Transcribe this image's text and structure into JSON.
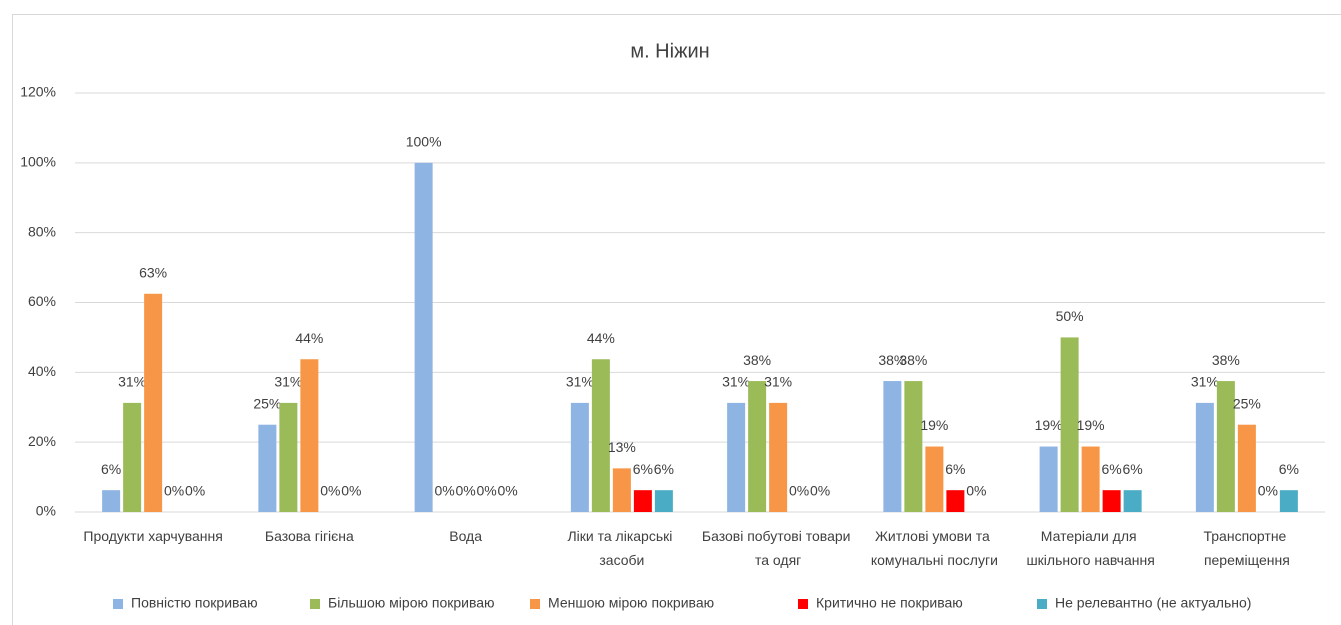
{
  "chart_data": {
    "type": "bar",
    "title": "м. Ніжин",
    "categories": [
      "Продукти харчування",
      "Базова гігієна",
      "Вода",
      "Ліки та лікарські засоби",
      "Базові побутові товари та одяг",
      "Житлові умови та комунальні послуги",
      "Матеріали для шкільного навчання",
      "Транспортне переміщення"
    ],
    "series": [
      {
        "name": "Повністю покриваю",
        "color": "#8eb4e3",
        "values": [
          6.25,
          25,
          100,
          31.25,
          31.25,
          37.5,
          18.75,
          31.25
        ],
        "value_labels": [
          "6%",
          "25%",
          "100%",
          "31%",
          "31%",
          "38%",
          "19%",
          "31%"
        ]
      },
      {
        "name": "Більшою мірою покриваю",
        "color": "#9bbb59",
        "values": [
          31.25,
          31.25,
          0,
          43.75,
          37.5,
          37.5,
          50,
          37.5
        ],
        "value_labels": [
          "31%",
          "31%",
          "0%",
          "44%",
          "38%",
          "38%",
          "50%",
          "38%"
        ]
      },
      {
        "name": "Меншою мірою покриваю",
        "color": "#f79646",
        "values": [
          62.5,
          43.75,
          0,
          12.5,
          31.25,
          18.75,
          18.75,
          25
        ],
        "value_labels": [
          "63%",
          "44%",
          "0%",
          "13%",
          "31%",
          "19%",
          "19%",
          "25%"
        ]
      },
      {
        "name": "Критично не покриваю",
        "color": "#ff0000",
        "values": [
          0,
          0,
          0,
          6.25,
          0,
          6.25,
          6.25,
          0
        ],
        "value_labels": [
          "0%",
          "0%",
          "0%",
          "6%",
          "0%",
          "6%",
          "6%",
          "0%"
        ]
      },
      {
        "name": "Не релевантно (не актуально)",
        "color": "#4bacc6",
        "values": [
          0,
          0,
          0,
          6.25,
          0,
          0,
          6.25,
          6.25
        ],
        "value_labels": [
          "0%",
          "0%",
          "0%",
          "6%",
          "0%",
          "0%",
          "6%",
          "6%"
        ]
      }
    ],
    "ylim": [
      0,
      120
    ],
    "yticks": [
      {
        "value": 0,
        "label": "0%"
      },
      {
        "value": 20,
        "label": "20%"
      },
      {
        "value": 40,
        "label": "40%"
      },
      {
        "value": 60,
        "label": "60%"
      },
      {
        "value": 80,
        "label": "80%"
      },
      {
        "value": 100,
        "label": "100%"
      },
      {
        "value": 120,
        "label": "120%"
      }
    ],
    "grid": true,
    "legend": "bottom"
  }
}
